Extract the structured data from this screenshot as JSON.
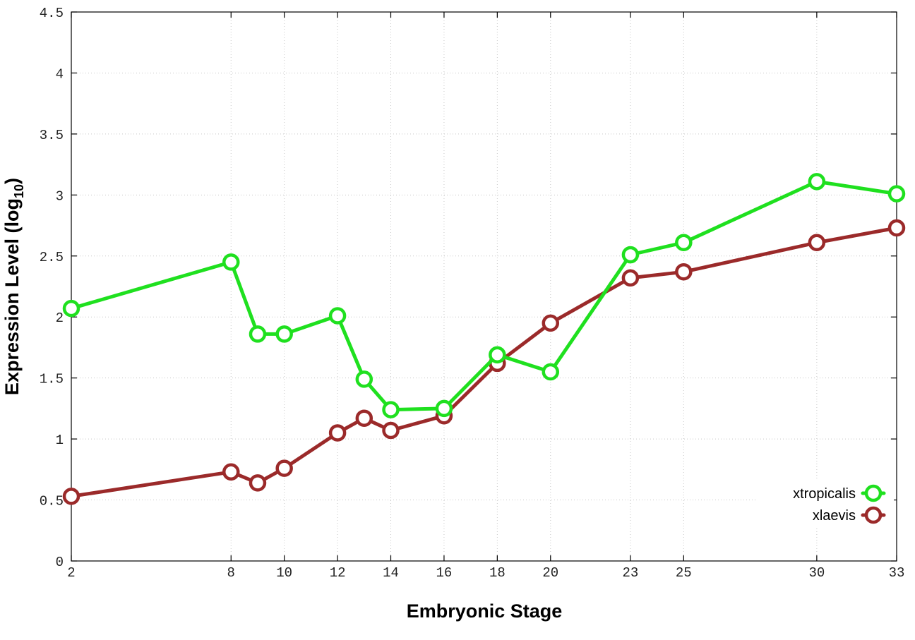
{
  "chart_data": {
    "type": "line",
    "title": "",
    "xlabel": "Embryonic Stage",
    "ylabel_main": "Expression Level (log",
    "ylabel_sub": "10",
    "ylabel_close": ")",
    "x": [
      2,
      8,
      9,
      10,
      12,
      13,
      14,
      16,
      18,
      20,
      23,
      25,
      30,
      33
    ],
    "xticks": [
      {
        "value": 2,
        "label": "2"
      },
      {
        "value": 8,
        "label": "8"
      },
      {
        "value": 10,
        "label": "10"
      },
      {
        "value": 12,
        "label": "12"
      },
      {
        "value": 14,
        "label": "14"
      },
      {
        "value": 16,
        "label": "16"
      },
      {
        "value": 18,
        "label": "18"
      },
      {
        "value": 20,
        "label": "20"
      },
      {
        "value": 23,
        "label": "23"
      },
      {
        "value": 25,
        "label": "25"
      },
      {
        "value": 30,
        "label": "30"
      },
      {
        "value": 33,
        "label": "33"
      }
    ],
    "yticks": [
      {
        "value": 0,
        "label": "0"
      },
      {
        "value": 0.5,
        "label": "0.5"
      },
      {
        "value": 1,
        "label": "1"
      },
      {
        "value": 1.5,
        "label": "1.5"
      },
      {
        "value": 2,
        "label": "2"
      },
      {
        "value": 2.5,
        "label": "2.5"
      },
      {
        "value": 3,
        "label": "3"
      },
      {
        "value": 3.5,
        "label": "3.5"
      },
      {
        "value": 4,
        "label": "4"
      },
      {
        "value": 4.5,
        "label": "4.5"
      }
    ],
    "xlim": [
      2,
      33
    ],
    "ylim": [
      0,
      4.5
    ],
    "grid": true,
    "legend_position": "bottom-right",
    "series": [
      {
        "name": "xtropicalis",
        "color": "#1fe01f",
        "values": [
          2.07,
          2.45,
          1.86,
          1.86,
          2.01,
          1.49,
          1.24,
          1.25,
          1.69,
          1.55,
          2.51,
          2.61,
          3.11,
          3.01
        ]
      },
      {
        "name": "xlaevis",
        "color": "#9b2a2a",
        "values": [
          0.53,
          0.73,
          0.64,
          0.76,
          1.05,
          1.17,
          1.07,
          1.19,
          1.62,
          1.95,
          2.32,
          2.37,
          2.61,
          2.73
        ]
      }
    ]
  }
}
